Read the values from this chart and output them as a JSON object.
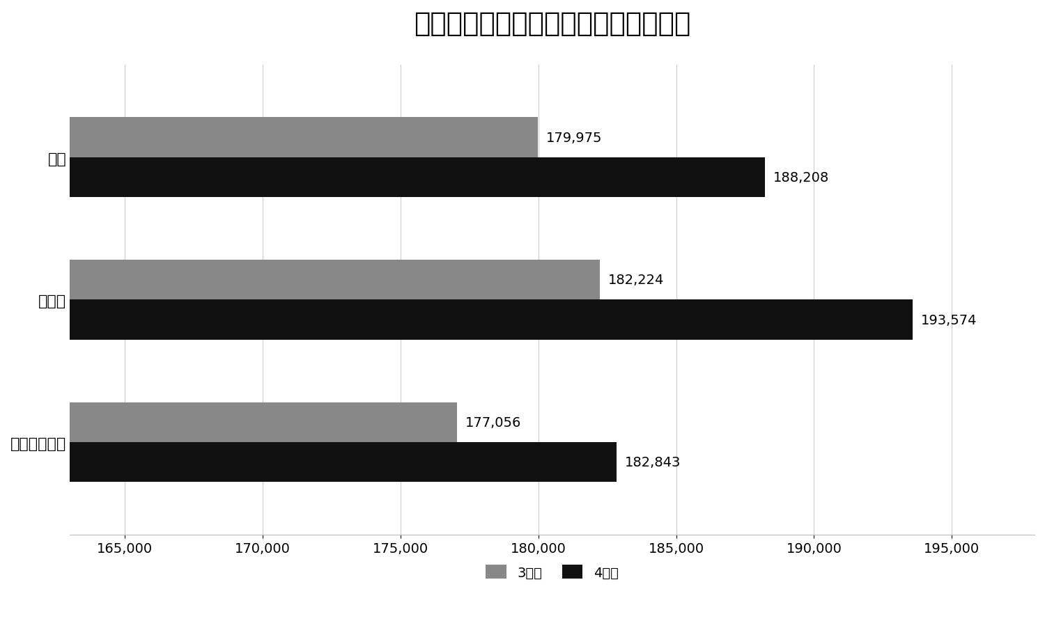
{
  "title": "保育士・保育教諭の平均初任給（円）",
  "categories": [
    "短大・専門卒",
    "大学卒",
    "全体"
  ],
  "series": {
    "3年度": {
      "values": [
        177056,
        182224,
        179975
      ],
      "color": "#888888"
    },
    "4年度": {
      "values": [
        182843,
        193574,
        188208
      ],
      "color": "#111111"
    }
  },
  "bar_labels": {
    "3年度": [
      "177,056",
      "182,224",
      "179,975"
    ],
    "4年度": [
      "182,843",
      "193,574",
      "188,208"
    ]
  },
  "xlim": [
    163000,
    198000
  ],
  "xticks": [
    165000,
    170000,
    175000,
    180000,
    185000,
    190000,
    195000
  ],
  "xlabel": "",
  "ylabel": "",
  "legend_labels": [
    "3年度",
    "4年度"
  ],
  "legend_colors": [
    "#888888",
    "#111111"
  ],
  "title_fontsize": 28,
  "tick_fontsize": 14,
  "label_fontsize": 14,
  "legend_fontsize": 14,
  "bar_height": 0.28,
  "background_color": "#ffffff"
}
